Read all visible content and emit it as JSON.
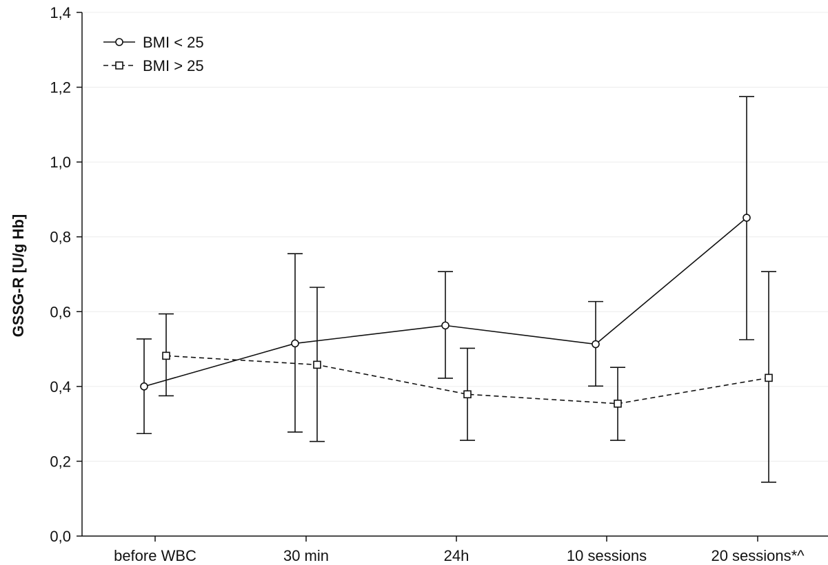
{
  "chart_data": {
    "type": "line",
    "title": "",
    "xlabel": "",
    "ylabel": "GSSG-R [U/g Hb]",
    "categories": [
      "before WBC",
      "30 min",
      "24h",
      "10 sessions",
      "20 sessions*^"
    ],
    "ylim": [
      0,
      1.4
    ],
    "yticks": [
      "0,0",
      "0,2",
      "0,4",
      "0,6",
      "0,8",
      "1,0",
      "1,2",
      "1,4"
    ],
    "ytick_values": [
      0,
      0.2,
      0.4,
      0.6,
      0.8,
      1.0,
      1.2,
      1.4
    ],
    "grid": true,
    "legend_position": "top-left",
    "series": [
      {
        "name": "BMI < 25",
        "marker": "circle",
        "line_style": "solid",
        "values": [
          0.4,
          0.515,
          0.563,
          0.513,
          0.851
        ],
        "error_upper": [
          0.527,
          0.755,
          0.707,
          0.627,
          1.175
        ],
        "error_lower": [
          0.274,
          0.278,
          0.422,
          0.401,
          0.525
        ]
      },
      {
        "name": "BMI > 25",
        "marker": "square",
        "line_style": "dashed",
        "values": [
          0.482,
          0.458,
          0.379,
          0.354,
          0.423
        ],
        "error_upper": [
          0.594,
          0.665,
          0.502,
          0.451,
          0.707
        ],
        "error_lower": [
          0.375,
          0.253,
          0.256,
          0.256,
          0.144
        ]
      }
    ]
  }
}
